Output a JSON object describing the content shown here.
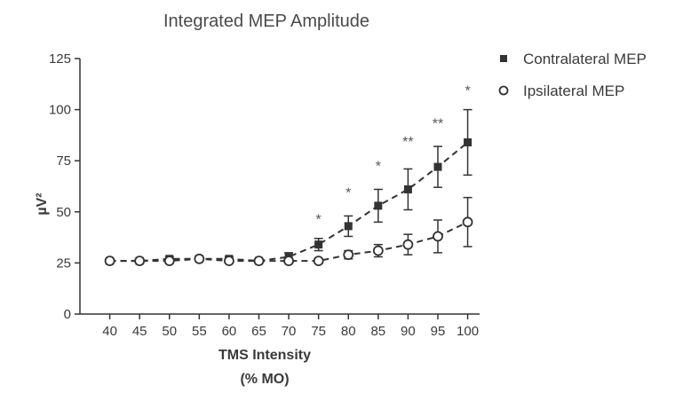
{
  "chart_data": {
    "type": "line",
    "title": "Integrated MEP Amplitude",
    "xlabel_line1": "TMS Intensity",
    "xlabel_line2": "(% MO)",
    "ylabel": "µV²",
    "x": [
      40,
      45,
      50,
      55,
      60,
      65,
      70,
      75,
      80,
      85,
      90,
      95,
      100
    ],
    "x_tick_labels": [
      "40",
      "45",
      "50",
      "55",
      "60",
      "65",
      "70",
      "75",
      "80",
      "85",
      "90",
      "95",
      "100"
    ],
    "ylim": [
      0,
      125
    ],
    "y_ticks": [
      0,
      25,
      50,
      75,
      100,
      125
    ],
    "y_tick_labels": [
      "0",
      "25",
      "50",
      "75",
      "100",
      "125"
    ],
    "grid": false,
    "legend_position": "top-right",
    "series": [
      {
        "name": "Contralateral MEP",
        "marker": "filled-square",
        "color": "#333333",
        "values": [
          26,
          26,
          27,
          27,
          27,
          26,
          28,
          34,
          43,
          53,
          61,
          72,
          84
        ],
        "error": [
          1,
          1,
          1,
          1,
          1,
          1,
          2,
          3,
          5,
          8,
          10,
          10,
          16
        ]
      },
      {
        "name": "Ipsilateral MEP",
        "marker": "open-circle",
        "color": "#333333",
        "values": [
          26,
          26,
          26,
          27,
          26,
          26,
          26,
          26,
          29,
          31,
          34,
          38,
          45
        ],
        "error": [
          1,
          1,
          1,
          1,
          1,
          1,
          1,
          1,
          2,
          3,
          5,
          8,
          12
        ]
      }
    ],
    "significance": [
      {
        "x": 75,
        "label": "*",
        "y": 44
      },
      {
        "x": 80,
        "label": "*",
        "y": 57
      },
      {
        "x": 85,
        "label": "*",
        "y": 70
      },
      {
        "x": 90,
        "label": "**",
        "y": 82
      },
      {
        "x": 95,
        "label": "**",
        "y": 91
      },
      {
        "x": 100,
        "label": "*",
        "y": 107
      }
    ]
  }
}
